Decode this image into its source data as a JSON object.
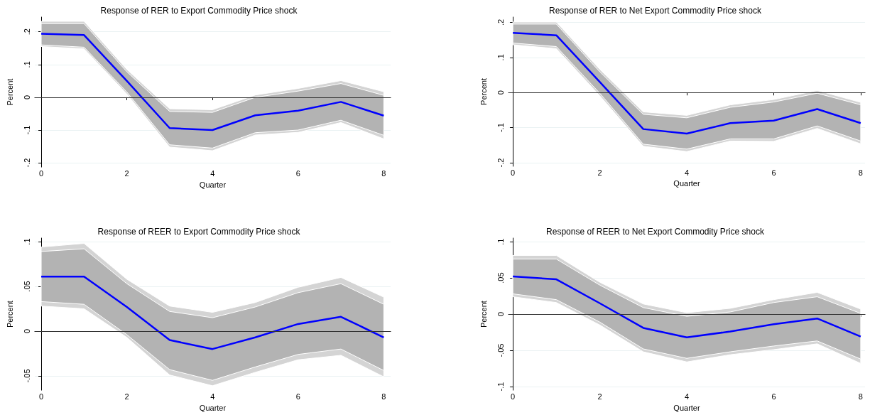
{
  "chart_data": [
    {
      "type": "line",
      "title": "Response of RER to Export Commodity Price shock",
      "xlabel": "Quarter",
      "ylabel": "Percent",
      "x": [
        0,
        1,
        2,
        3,
        4,
        5,
        6,
        7,
        8
      ],
      "series": [
        {
          "type": "area",
          "color": "#d4d4d4",
          "values": [
            null,
            null,
            null,
            null,
            null,
            null,
            null,
            null,
            null
          ],
          "lower": [
            0.155,
            0.148,
            0.01,
            -0.152,
            -0.163,
            -0.115,
            -0.107,
            -0.077,
            -0.127
          ],
          "upper": [
            0.232,
            0.232,
            0.085,
            -0.035,
            -0.038,
            0.007,
            0.027,
            0.051,
            0.017
          ]
        },
        {
          "color": "#0000ff",
          "values": [
            0.194,
            0.19,
            0.05,
            -0.094,
            -0.1,
            -0.055,
            -0.041,
            -0.014,
            -0.056
          ],
          "lower": [
            0.16,
            0.153,
            0.016,
            -0.145,
            -0.155,
            -0.108,
            -0.1,
            -0.07,
            -0.116
          ],
          "upper": [
            0.225,
            0.225,
            0.078,
            -0.043,
            -0.046,
            0.0,
            0.019,
            0.042,
            0.006
          ]
        }
      ],
      "xlim": [
        -0.15,
        8.16
      ],
      "xticks": [
        0,
        2,
        4,
        6,
        8
      ],
      "ylim": [
        -0.213,
        0.245
      ],
      "yticks": [
        {
          "value": -0.2,
          "label": "-.2"
        },
        {
          "value": -0.1,
          "label": "-.1"
        },
        {
          "value": 0,
          "label": "0"
        },
        {
          "value": 0.1,
          "label": ".1"
        },
        {
          "value": 0.2,
          "label": ".2"
        }
      ],
      "ref_lines": [
        {
          "axis": "y",
          "value": 0,
          "color": "#333333"
        }
      ],
      "grid": "y",
      "marker": "none",
      "line_style": "solid"
    },
    {
      "type": "line",
      "title": "Response of RER to Net Export Commodity Price shock",
      "xlabel": "Quarter",
      "ylabel": "Percent",
      "x": [
        0,
        1,
        2,
        3,
        4,
        5,
        6,
        7,
        8
      ],
      "series": [
        {
          "type": "area",
          "color": "#d4d4d4",
          "values": [
            null,
            null,
            null,
            null,
            null,
            null,
            null,
            null,
            null
          ],
          "lower": [
            0.136,
            0.125,
            -0.009,
            -0.153,
            -0.168,
            -0.138,
            -0.139,
            -0.102,
            -0.146
          ],
          "upper": [
            0.201,
            0.201,
            0.066,
            -0.055,
            -0.065,
            -0.035,
            -0.02,
            0.006,
            -0.028
          ]
        },
        {
          "color": "#0000ff",
          "values": [
            0.17,
            0.163,
            0.03,
            -0.104,
            -0.117,
            -0.087,
            -0.08,
            -0.047,
            -0.087
          ],
          "lower": [
            0.141,
            0.131,
            -0.002,
            -0.147,
            -0.161,
            -0.132,
            -0.132,
            -0.095,
            -0.138
          ],
          "upper": [
            0.195,
            0.195,
            0.059,
            -0.062,
            -0.072,
            -0.042,
            -0.027,
            -0.002,
            -0.035
          ]
        }
      ],
      "xlim": [
        -0.1,
        8.1
      ],
      "xticks": [
        0,
        2,
        4,
        6,
        8
      ],
      "ylim": [
        -0.21,
        0.215
      ],
      "yticks": [
        {
          "value": -0.2,
          "label": "-.2"
        },
        {
          "value": -0.1,
          "label": "-.1"
        },
        {
          "value": 0,
          "label": "0"
        },
        {
          "value": 0.1,
          "label": ".1"
        },
        {
          "value": 0.2,
          "label": ".2"
        }
      ],
      "ref_lines": [
        {
          "axis": "y",
          "value": 0,
          "color": "#333333"
        }
      ],
      "grid": "y",
      "marker": "none",
      "line_style": "solid"
    },
    {
      "type": "line",
      "title": "Response of REER to Export Commodity Price shock",
      "xlabel": "Quarter",
      "ylabel": "Percent",
      "x": [
        0,
        1,
        2,
        3,
        4,
        5,
        6,
        7,
        8
      ],
      "series": [
        {
          "type": "area",
          "color": "#d4d4d4",
          "values": [
            null,
            null,
            null,
            null,
            null,
            null,
            null,
            null,
            null
          ],
          "lower": [
            0.028,
            0.025,
            -0.007,
            -0.049,
            -0.061,
            -0.046,
            -0.032,
            -0.027,
            -0.051
          ],
          "upper": [
            0.094,
            0.098,
            0.058,
            0.028,
            0.021,
            0.032,
            0.049,
            0.06,
            0.038
          ]
        },
        {
          "color": "#0000ff",
          "values": [
            0.061,
            0.061,
            0.027,
            -0.01,
            -0.02,
            -0.007,
            0.008,
            0.016,
            -0.007
          ],
          "lower": [
            0.033,
            0.03,
            -0.004,
            -0.043,
            -0.055,
            -0.04,
            -0.026,
            -0.02,
            -0.044
          ],
          "upper": [
            0.089,
            0.092,
            0.053,
            0.022,
            0.015,
            0.027,
            0.043,
            0.053,
            0.03
          ]
        }
      ],
      "xlim": [
        -0.15,
        8.16
      ],
      "xticks": [
        0,
        2,
        4,
        6,
        8
      ],
      "ylim": [
        -0.066,
        0.104
      ],
      "yticks": [
        {
          "value": -0.05,
          "label": "-.05"
        },
        {
          "value": 0,
          "label": "0"
        },
        {
          "value": 0.05,
          "label": ".05"
        },
        {
          "value": 0.1,
          "label": ".1"
        }
      ],
      "ref_lines": [
        {
          "axis": "y",
          "value": 0,
          "color": "#333333"
        }
      ],
      "grid": "y",
      "marker": "none",
      "line_style": "solid"
    },
    {
      "type": "line",
      "title": "Response of REER to Net Export Commodity Price shock",
      "xlabel": "Quarter",
      "ylabel": "Percent",
      "x": [
        0,
        1,
        2,
        3,
        4,
        5,
        6,
        7,
        8
      ],
      "series": [
        {
          "type": "area",
          "color": "#d4d4d4",
          "values": [
            null,
            null,
            null,
            null,
            null,
            null,
            null,
            null,
            null
          ],
          "lower": [
            0.024,
            0.016,
            -0.015,
            -0.052,
            -0.066,
            -0.056,
            -0.049,
            -0.041,
            -0.068
          ],
          "upper": [
            0.081,
            0.081,
            0.044,
            0.014,
            0.002,
            0.008,
            0.02,
            0.03,
            0.007
          ]
        },
        {
          "color": "#0000ff",
          "values": [
            0.052,
            0.048,
            0.015,
            -0.019,
            -0.032,
            -0.024,
            -0.014,
            -0.006,
            -0.031
          ],
          "lower": [
            0.028,
            0.02,
            -0.011,
            -0.048,
            -0.061,
            -0.052,
            -0.044,
            -0.037,
            -0.062
          ],
          "upper": [
            0.076,
            0.076,
            0.04,
            0.009,
            -0.003,
            0.003,
            0.016,
            0.024,
            0.001
          ]
        }
      ],
      "xlim": [
        -0.1,
        8.1
      ],
      "xticks": [
        0,
        2,
        4,
        6,
        8
      ],
      "ylim": [
        -0.105,
        0.105
      ],
      "yticks": [
        {
          "value": -0.1,
          "label": "-.1"
        },
        {
          "value": -0.05,
          "label": "-.05"
        },
        {
          "value": 0,
          "label": "0"
        },
        {
          "value": 0.05,
          "label": ".05"
        },
        {
          "value": 0.1,
          "label": ".1"
        }
      ],
      "ref_lines": [
        {
          "axis": "y",
          "value": 0,
          "color": "#333333"
        }
      ],
      "grid": "y",
      "marker": "none",
      "line_style": "solid"
    }
  ]
}
